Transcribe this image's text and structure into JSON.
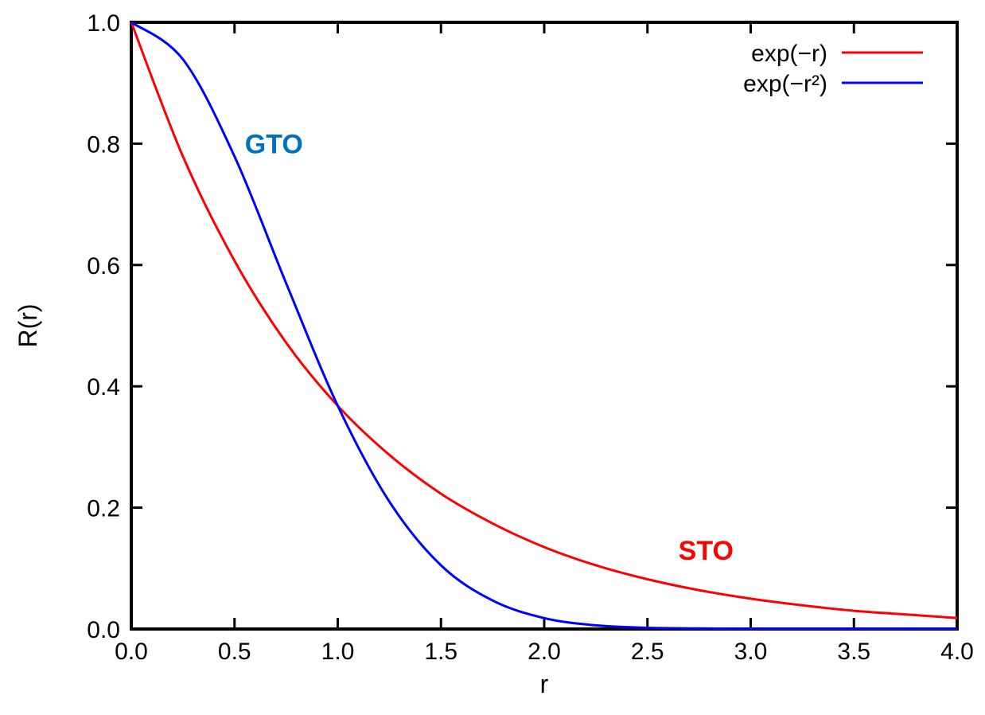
{
  "chart_data": {
    "type": "line",
    "title": "",
    "xlabel": "r",
    "ylabel": "R(r)",
    "xlim": [
      0,
      4
    ],
    "ylim": [
      0,
      1
    ],
    "grid": false,
    "legend_placement": "top-right",
    "x_ticks": [
      "0.0",
      "0.5",
      "1.0",
      "1.5",
      "2.0",
      "2.5",
      "3.0",
      "3.5",
      "4.0"
    ],
    "y_ticks": [
      "0.0",
      "0.2",
      "0.4",
      "0.6",
      "0.8",
      "1.0"
    ],
    "x": [
      0,
      0.25,
      0.5,
      0.75,
      1.0,
      1.25,
      1.5,
      1.75,
      2.0,
      2.25,
      2.5,
      2.75,
      3.0,
      3.25,
      3.5,
      3.75,
      4.0
    ],
    "series": [
      {
        "name": "exp(−r)",
        "color": "#ff0000",
        "values": [
          1.0,
          0.779,
          0.607,
          0.472,
          0.368,
          0.287,
          0.223,
          0.174,
          0.135,
          0.105,
          0.082,
          0.064,
          0.05,
          0.039,
          0.03,
          0.024,
          0.018
        ]
      },
      {
        "name": "exp(−r²)",
        "color": "#0000ff",
        "values": [
          1.0,
          0.939,
          0.779,
          0.57,
          0.368,
          0.21,
          0.105,
          0.047,
          0.018,
          0.006,
          0.002,
          0.001,
          0.0,
          0.0,
          0.0,
          0.0,
          0.0
        ]
      }
    ],
    "annotations": [
      {
        "text": "GTO",
        "x": 0.55,
        "y": 0.8,
        "color": "#0070c0"
      },
      {
        "text": "STO",
        "x": 2.65,
        "y": 0.13,
        "color": "#ff0000"
      }
    ]
  }
}
